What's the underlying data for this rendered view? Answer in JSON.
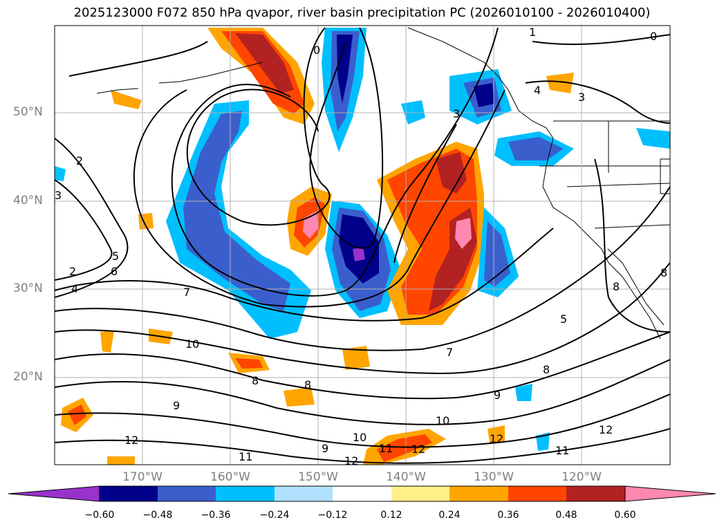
{
  "title": "2025123000 F072 850 hPa qvapor, river basin precipitation PC (2026010100 - 2026010400)",
  "map": {
    "lat_labels": [
      "50°N",
      "40°N",
      "30°N",
      "20°N"
    ],
    "lon_labels": [
      "170°W",
      "160°W",
      "150°W",
      "140°W",
      "130°W",
      "120°W"
    ],
    "contour_labels": [
      "1",
      "0",
      "0",
      "4",
      "3",
      "2",
      "3",
      "5",
      "6",
      "2",
      "4",
      "7",
      "8",
      "3",
      "5",
      "8",
      "10",
      "7",
      "8",
      "8",
      "8",
      "9",
      "9",
      "9",
      "10",
      "12",
      "10",
      "11",
      "12",
      "11",
      "12",
      "12",
      "11",
      "12"
    ]
  },
  "colorbar": {
    "ticks": [
      "−0.60",
      "−0.48",
      "−0.36",
      "−0.24",
      "−0.12",
      "0.12",
      "0.24",
      "0.36",
      "0.48",
      "0.60"
    ],
    "colors": [
      "#9932cc",
      "#00008b",
      "#3a5fcd",
      "#00bfff",
      "#b0e2ff",
      "#ffffff",
      "#fff08a",
      "#ffa500",
      "#ff4500",
      "#b22222",
      "#ff88b0",
      "#ff88b0"
    ]
  }
}
